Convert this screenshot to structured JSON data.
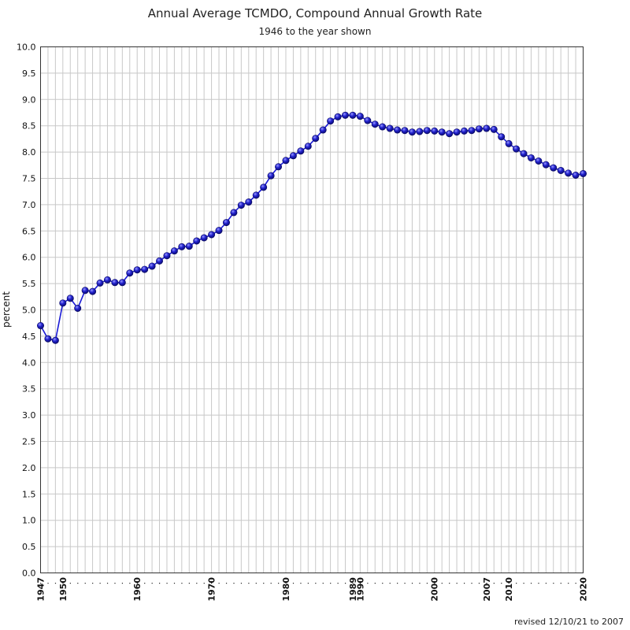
{
  "chart_data": {
    "type": "line",
    "title": "Annual Average TCMDO, Compound Annual Growth Rate",
    "subtitle": "1946 to the year shown",
    "xlabel": "",
    "ylabel": "percent",
    "ylim": [
      0,
      10
    ],
    "xlim": [
      1947,
      2020
    ],
    "y_ticks": [
      "0.0",
      "0.5",
      "1.0",
      "1.5",
      "2.0",
      "2.5",
      "3.0",
      "3.5",
      "4.0",
      "4.5",
      "5.0",
      "5.5",
      "6.0",
      "6.5",
      "7.0",
      "7.5",
      "8.0",
      "8.5",
      "9.0",
      "9.5",
      "10.0"
    ],
    "x_tick_labels": [
      1947,
      1950,
      1960,
      1970,
      1980,
      1989,
      1990,
      2000,
      2007,
      2010,
      2020
    ],
    "grid": true,
    "series_color": "#1a1ad6",
    "marker_color": "#1e1ec8",
    "x": [
      1947,
      1948,
      1949,
      1950,
      1951,
      1952,
      1953,
      1954,
      1955,
      1956,
      1957,
      1958,
      1959,
      1960,
      1961,
      1962,
      1963,
      1964,
      1965,
      1966,
      1967,
      1968,
      1969,
      1970,
      1971,
      1972,
      1973,
      1974,
      1975,
      1976,
      1977,
      1978,
      1979,
      1980,
      1981,
      1982,
      1983,
      1984,
      1985,
      1986,
      1987,
      1988,
      1989,
      1990,
      1991,
      1992,
      1993,
      1994,
      1995,
      1996,
      1997,
      1998,
      1999,
      2000,
      2001,
      2002,
      2003,
      2004,
      2005,
      2006,
      2007,
      2008,
      2009,
      2010,
      2011,
      2012,
      2013,
      2014,
      2015,
      2016,
      2017,
      2018,
      2019,
      2020
    ],
    "values": [
      4.7,
      4.45,
      4.42,
      5.13,
      5.22,
      5.03,
      5.37,
      5.35,
      5.51,
      5.57,
      5.52,
      5.52,
      5.7,
      5.76,
      5.77,
      5.83,
      5.93,
      6.03,
      6.12,
      6.2,
      6.21,
      6.31,
      6.37,
      6.43,
      6.51,
      6.66,
      6.85,
      6.99,
      7.05,
      7.18,
      7.33,
      7.55,
      7.72,
      7.84,
      7.93,
      8.02,
      8.11,
      8.26,
      8.42,
      8.59,
      8.67,
      8.7,
      8.7,
      8.68,
      8.6,
      8.53,
      8.48,
      8.45,
      8.42,
      8.41,
      8.38,
      8.39,
      8.41,
      8.4,
      8.38,
      8.35,
      8.38,
      8.4,
      8.41,
      8.44,
      8.45,
      8.43,
      8.29,
      8.16,
      8.06,
      7.97,
      7.89,
      7.83,
      7.76,
      7.7,
      7.65,
      7.6,
      7.56,
      7.59
    ]
  },
  "footer_note": "revised 12/10/21 to 2007"
}
